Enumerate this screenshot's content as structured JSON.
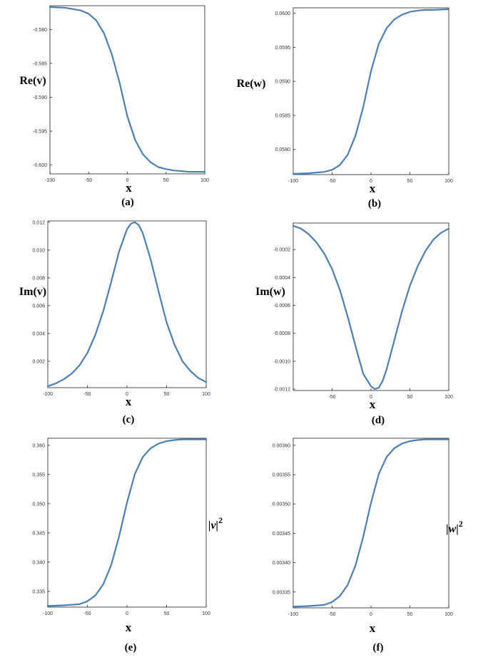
{
  "chart_data": [
    {
      "id": "a",
      "type": "line",
      "caption": "(a)",
      "xlabel": "x",
      "ylabel": "Re(v)",
      "ylabel_style": "text",
      "xlim": [
        -100,
        100
      ],
      "ylim": [
        -0.6013,
        -0.5765
      ],
      "xticks": [
        -100,
        -50,
        0,
        50,
        100
      ],
      "xtick_labels": [
        "-100",
        "-50",
        "0",
        "50",
        "100"
      ],
      "yticks": [
        -0.58,
        -0.585,
        -0.59,
        -0.595,
        -0.6
      ],
      "ytick_labels": [
        "-0.580",
        "-0.585",
        "-0.590",
        "-0.595",
        "-0.600"
      ],
      "series": [
        {
          "x": [
            -100,
            -80,
            -60,
            -50,
            -40,
            -30,
            -20,
            -10,
            0,
            10,
            20,
            30,
            40,
            50,
            60,
            70,
            80,
            100
          ],
          "y": [
            -0.5767,
            -0.5768,
            -0.5772,
            -0.5777,
            -0.5787,
            -0.5806,
            -0.5837,
            -0.5879,
            -0.5928,
            -0.5963,
            -0.5984,
            -0.5996,
            -0.6003,
            -0.6006,
            -0.6008,
            -0.6009,
            -0.601,
            -0.601
          ]
        }
      ]
    },
    {
      "id": "b",
      "type": "line",
      "caption": "(b)",
      "xlabel": "x",
      "ylabel": "Re(w)",
      "ylabel_style": "text",
      "xlim": [
        -100,
        100
      ],
      "ylim": [
        0.05763,
        0.06008
      ],
      "xticks": [
        -100,
        -50,
        0,
        50,
        100
      ],
      "xtick_labels": [
        "-100",
        "-50",
        "0",
        "50",
        "100"
      ],
      "yticks": [
        0.06,
        0.0595,
        0.059,
        0.0585,
        0.058
      ],
      "ytick_labels": [
        "0.0600",
        "0.0595",
        "0.0590",
        "0.0585",
        "0.0580"
      ],
      "series": [
        {
          "x": [
            -100,
            -80,
            -60,
            -50,
            -40,
            -30,
            -20,
            -10,
            0,
            10,
            20,
            30,
            40,
            50,
            60,
            70,
            80,
            100
          ],
          "y": [
            0.05764,
            0.05765,
            0.05767,
            0.0577,
            0.05777,
            0.05792,
            0.0582,
            0.05862,
            0.05915,
            0.05955,
            0.05978,
            0.05991,
            0.05998,
            0.06002,
            0.06004,
            0.06005,
            0.06005,
            0.06006
          ]
        }
      ]
    },
    {
      "id": "c",
      "type": "line",
      "caption": "(c)",
      "xlabel": "x",
      "ylabel": "Im(v)",
      "ylabel_style": "text",
      "xlim": [
        -100,
        100
      ],
      "ylim": [
        0.0001,
        0.0121
      ],
      "xticks": [
        -100,
        -50,
        0,
        50,
        100
      ],
      "xtick_labels": [
        "-100",
        "-50",
        "0",
        "50",
        "100"
      ],
      "yticks": [
        0.012,
        0.01,
        0.008,
        0.006,
        0.004,
        0.002
      ],
      "ytick_labels": [
        "0.012",
        "0.010",
        "0.008",
        "0.006",
        "0.004",
        "0.002"
      ],
      "series": [
        {
          "x": [
            -100,
            -90,
            -80,
            -70,
            -60,
            -50,
            -40,
            -30,
            -20,
            -10,
            0,
            5,
            10,
            15,
            20,
            30,
            40,
            50,
            60,
            70,
            80,
            90,
            100
          ],
          "y": [
            0.0002,
            0.0004,
            0.0007,
            0.0011,
            0.0017,
            0.0026,
            0.0039,
            0.0056,
            0.0077,
            0.0099,
            0.0115,
            0.0119,
            0.012,
            0.0118,
            0.0112,
            0.0093,
            0.007,
            0.0048,
            0.0032,
            0.002,
            0.0013,
            0.0008,
            0.0005
          ]
        }
      ]
    },
    {
      "id": "d",
      "type": "line",
      "caption": "(d)",
      "xlabel": "x",
      "ylabel": "Im(w)",
      "ylabel_style": "text",
      "xlim": [
        -100,
        100
      ],
      "ylim": [
        -0.00121,
        -1e-05
      ],
      "xticks": [
        -50,
        0,
        50,
        100
      ],
      "xtick_labels": [
        "-50",
        "0",
        "50",
        "100"
      ],
      "yticks": [
        -0.0002,
        -0.0004,
        -0.0006,
        -0.0008,
        -0.001,
        -0.0012
      ],
      "ytick_labels": [
        "-0.0002",
        "-0.0004",
        "-0.0006",
        "-0.0008",
        "-0.0010",
        "-0.0012"
      ],
      "series": [
        {
          "x": [
            -100,
            -90,
            -80,
            -70,
            -60,
            -50,
            -40,
            -30,
            -20,
            -10,
            0,
            5,
            10,
            15,
            20,
            30,
            40,
            50,
            60,
            70,
            80,
            90,
            100
          ],
          "y": [
            -3e-05,
            -5e-05,
            -9e-05,
            -0.00015,
            -0.00023,
            -0.00034,
            -0.00049,
            -0.00068,
            -0.00089,
            -0.00109,
            -0.00118,
            -0.0012,
            -0.00119,
            -0.00114,
            -0.00106,
            -0.00085,
            -0.00064,
            -0.00046,
            -0.00032,
            -0.00021,
            -0.00013,
            -8e-05,
            -5e-05
          ]
        }
      ]
    },
    {
      "id": "e",
      "type": "line",
      "caption": "(e)",
      "xlabel": "x",
      "ylabel": "|v|",
      "ylabel_sup": "2",
      "ylabel_style": "math",
      "xlim": [
        -100,
        100
      ],
      "ylim": [
        0.3323,
        0.3612
      ],
      "xticks": [
        -100,
        -50,
        0,
        50,
        100
      ],
      "xtick_labels": [
        "-100",
        "-50",
        "0",
        "50",
        "100"
      ],
      "yticks": [
        0.36,
        0.355,
        0.35,
        0.345,
        0.34,
        0.335
      ],
      "ytick_labels": [
        "0.360",
        "0.355",
        "0.350",
        "0.345",
        "0.340",
        "0.335"
      ],
      "series": [
        {
          "x": [
            -100,
            -80,
            -60,
            -50,
            -40,
            -30,
            -20,
            -10,
            0,
            10,
            20,
            30,
            40,
            50,
            60,
            70,
            80,
            100
          ],
          "y": [
            0.3325,
            0.3326,
            0.3328,
            0.3333,
            0.3343,
            0.3362,
            0.3395,
            0.3444,
            0.3502,
            0.3551,
            0.358,
            0.3595,
            0.3603,
            0.3607,
            0.3609,
            0.361,
            0.361,
            0.361
          ]
        }
      ]
    },
    {
      "id": "f",
      "type": "line",
      "caption": "(f)",
      "xlabel": "x",
      "ylabel": "|w|",
      "ylabel_sup": "2",
      "ylabel_style": "math",
      "xlim": [
        -100,
        100
      ],
      "ylim": [
        0.003323,
        0.003612
      ],
      "xticks": [
        -100,
        -50,
        0,
        50,
        100
      ],
      "xtick_labels": [
        "-100",
        "-50",
        "0",
        "50",
        "100"
      ],
      "yticks": [
        0.0036,
        0.00355,
        0.0035,
        0.00345,
        0.0034,
        0.00335
      ],
      "ytick_labels": [
        "0.00360",
        "0.00355",
        "0.00350",
        "0.00345",
        "0.00340",
        "0.00335"
      ],
      "series": [
        {
          "x": [
            -100,
            -80,
            -60,
            -50,
            -40,
            -30,
            -20,
            -10,
            0,
            10,
            20,
            30,
            40,
            50,
            60,
            70,
            80,
            100
          ],
          "y": [
            0.003325,
            0.003326,
            0.003328,
            0.003333,
            0.003343,
            0.003362,
            0.003395,
            0.003444,
            0.003502,
            0.003551,
            0.00358,
            0.003595,
            0.003603,
            0.003607,
            0.003609,
            0.00361,
            0.00361,
            0.00361
          ]
        }
      ]
    }
  ],
  "style": {
    "line_color": "#4a7fb8",
    "frame_color": "#222222"
  }
}
